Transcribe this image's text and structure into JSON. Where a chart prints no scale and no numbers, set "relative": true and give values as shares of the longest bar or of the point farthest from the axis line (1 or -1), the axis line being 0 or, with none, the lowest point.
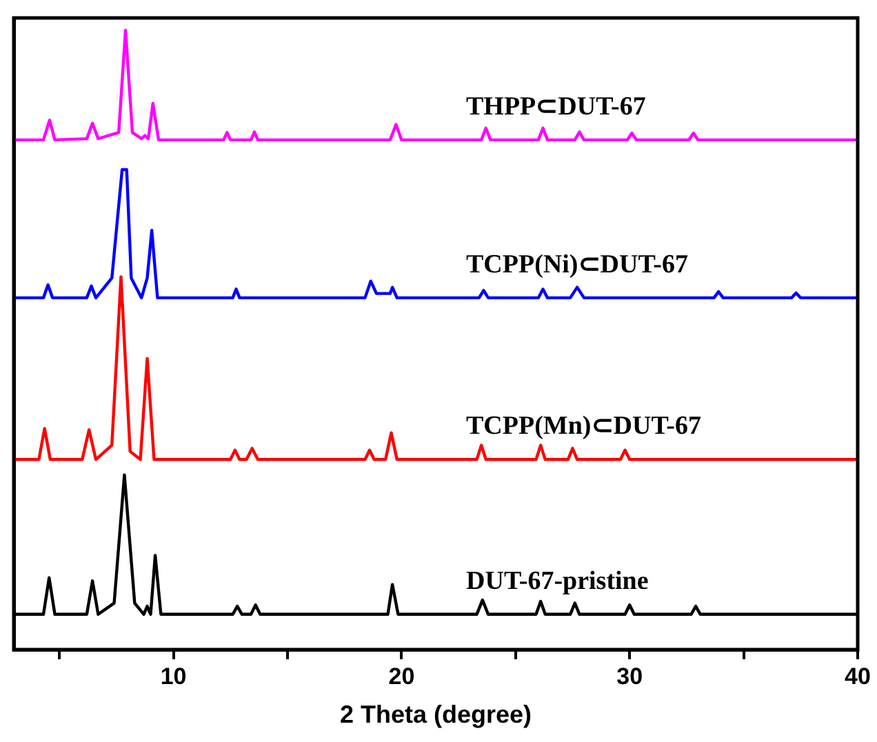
{
  "chart_data": {
    "type": "line",
    "xlabel": "2 Theta (degree)",
    "relative": true,
    "xlim": [
      3,
      40
    ],
    "xticks": [
      {
        "value": 5,
        "label": null
      },
      10,
      {
        "value": 15,
        "label": null
      },
      20,
      {
        "value": 25,
        "label": null
      },
      30,
      {
        "value": 35,
        "label": null
      },
      40
    ],
    "grid": false,
    "legend": false,
    "marker": "none",
    "line_style": "solid",
    "series": [
      {
        "name": "THPP⊂DUT-67",
        "color": "#ff00ff",
        "x": [
          3,
          4.3,
          4.57,
          4.8,
          6.2,
          6.45,
          6.7,
          7.6,
          7.9,
          8.2,
          8.6,
          8.75,
          8.9,
          9.1,
          9.35,
          12.2,
          12.35,
          12.5,
          13.4,
          13.55,
          13.7,
          19.5,
          19.76,
          20.0,
          23.5,
          23.7,
          23.9,
          26.0,
          26.2,
          26.4,
          27.6,
          27.8,
          28.0,
          29.9,
          30.1,
          30.3,
          32.6,
          32.8,
          33.0,
          40
        ],
        "values": [
          0.823,
          0.823,
          0.855,
          0.823,
          0.825,
          0.85,
          0.825,
          0.835,
          1,
          0.835,
          0.825,
          0.83,
          0.825,
          0.882,
          0.823,
          0.823,
          0.835,
          0.823,
          0.823,
          0.836,
          0.823,
          0.823,
          0.848,
          0.823,
          0.823,
          0.842,
          0.823,
          0.823,
          0.842,
          0.823,
          0.823,
          0.836,
          0.823,
          0.823,
          0.834,
          0.823,
          0.823,
          0.834,
          0.823,
          0.823
        ]
      },
      {
        "name": "TCPP(Ni)⊂DUT-67",
        "color": "#0000ff",
        "x": [
          3,
          4.3,
          4.5,
          4.7,
          6.2,
          6.4,
          6.6,
          7.3,
          7.75,
          7.95,
          8.15,
          8.6,
          8.85,
          9.05,
          9.3,
          12.6,
          12.75,
          12.9,
          18.4,
          18.65,
          18.9,
          19.5,
          19.6,
          19.8,
          23.4,
          23.6,
          23.8,
          26.0,
          26.2,
          26.4,
          27.4,
          27.7,
          28.0,
          33.7,
          33.9,
          34.1,
          37.1,
          37.3,
          37.5,
          40
        ],
        "values": [
          0.568,
          0.568,
          0.589,
          0.568,
          0.568,
          0.587,
          0.568,
          0.6,
          0.775,
          0.775,
          0.6,
          0.568,
          0.6,
          0.677,
          0.568,
          0.568,
          0.582,
          0.568,
          0.568,
          0.595,
          0.575,
          0.575,
          0.585,
          0.568,
          0.568,
          0.58,
          0.568,
          0.568,
          0.582,
          0.568,
          0.568,
          0.585,
          0.568,
          0.568,
          0.578,
          0.568,
          0.568,
          0.576,
          0.568,
          0.568
        ]
      },
      {
        "name": "TCPP(Mn)⊂DUT-67",
        "color": "#ff0000",
        "x": [
          3,
          4.1,
          4.35,
          4.6,
          6.0,
          6.3,
          6.6,
          7.3,
          7.7,
          8.1,
          8.55,
          8.85,
          9.15,
          12.5,
          12.7,
          12.9,
          13.2,
          13.45,
          13.7,
          18.4,
          18.6,
          18.8,
          19.3,
          19.55,
          19.8,
          23.3,
          23.5,
          23.7,
          25.9,
          26.1,
          26.3,
          27.3,
          27.5,
          27.7,
          29.6,
          29.8,
          30.0,
          40
        ],
        "values": [
          0.307,
          0.307,
          0.357,
          0.307,
          0.307,
          0.355,
          0.307,
          0.33,
          0.602,
          0.32,
          0.307,
          0.47,
          0.307,
          0.307,
          0.322,
          0.307,
          0.307,
          0.325,
          0.307,
          0.307,
          0.322,
          0.307,
          0.307,
          0.35,
          0.307,
          0.307,
          0.33,
          0.307,
          0.307,
          0.33,
          0.307,
          0.307,
          0.325,
          0.307,
          0.307,
          0.322,
          0.307,
          0.307
        ]
      },
      {
        "name": "DUT-67-pristine",
        "color": "#000000",
        "x": [
          3,
          4.3,
          4.55,
          4.8,
          6.2,
          6.45,
          6.7,
          7.4,
          7.85,
          8.3,
          8.7,
          8.85,
          9.0,
          9.2,
          9.45,
          12.6,
          12.8,
          13.0,
          13.4,
          13.6,
          13.8,
          19.4,
          19.6,
          19.85,
          23.3,
          23.55,
          23.8,
          25.9,
          26.1,
          26.3,
          27.4,
          27.6,
          27.8,
          29.8,
          30.0,
          30.2,
          32.7,
          32.9,
          33.1,
          40
        ],
        "values": [
          0.057,
          0.057,
          0.116,
          0.057,
          0.057,
          0.111,
          0.057,
          0.075,
          0.282,
          0.075,
          0.057,
          0.07,
          0.057,
          0.152,
          0.057,
          0.057,
          0.07,
          0.057,
          0.057,
          0.072,
          0.057,
          0.057,
          0.105,
          0.057,
          0.057,
          0.08,
          0.057,
          0.057,
          0.078,
          0.057,
          0.057,
          0.075,
          0.057,
          0.057,
          0.072,
          0.057,
          0.057,
          0.07,
          0.057,
          0.057
        ]
      }
    ]
  }
}
